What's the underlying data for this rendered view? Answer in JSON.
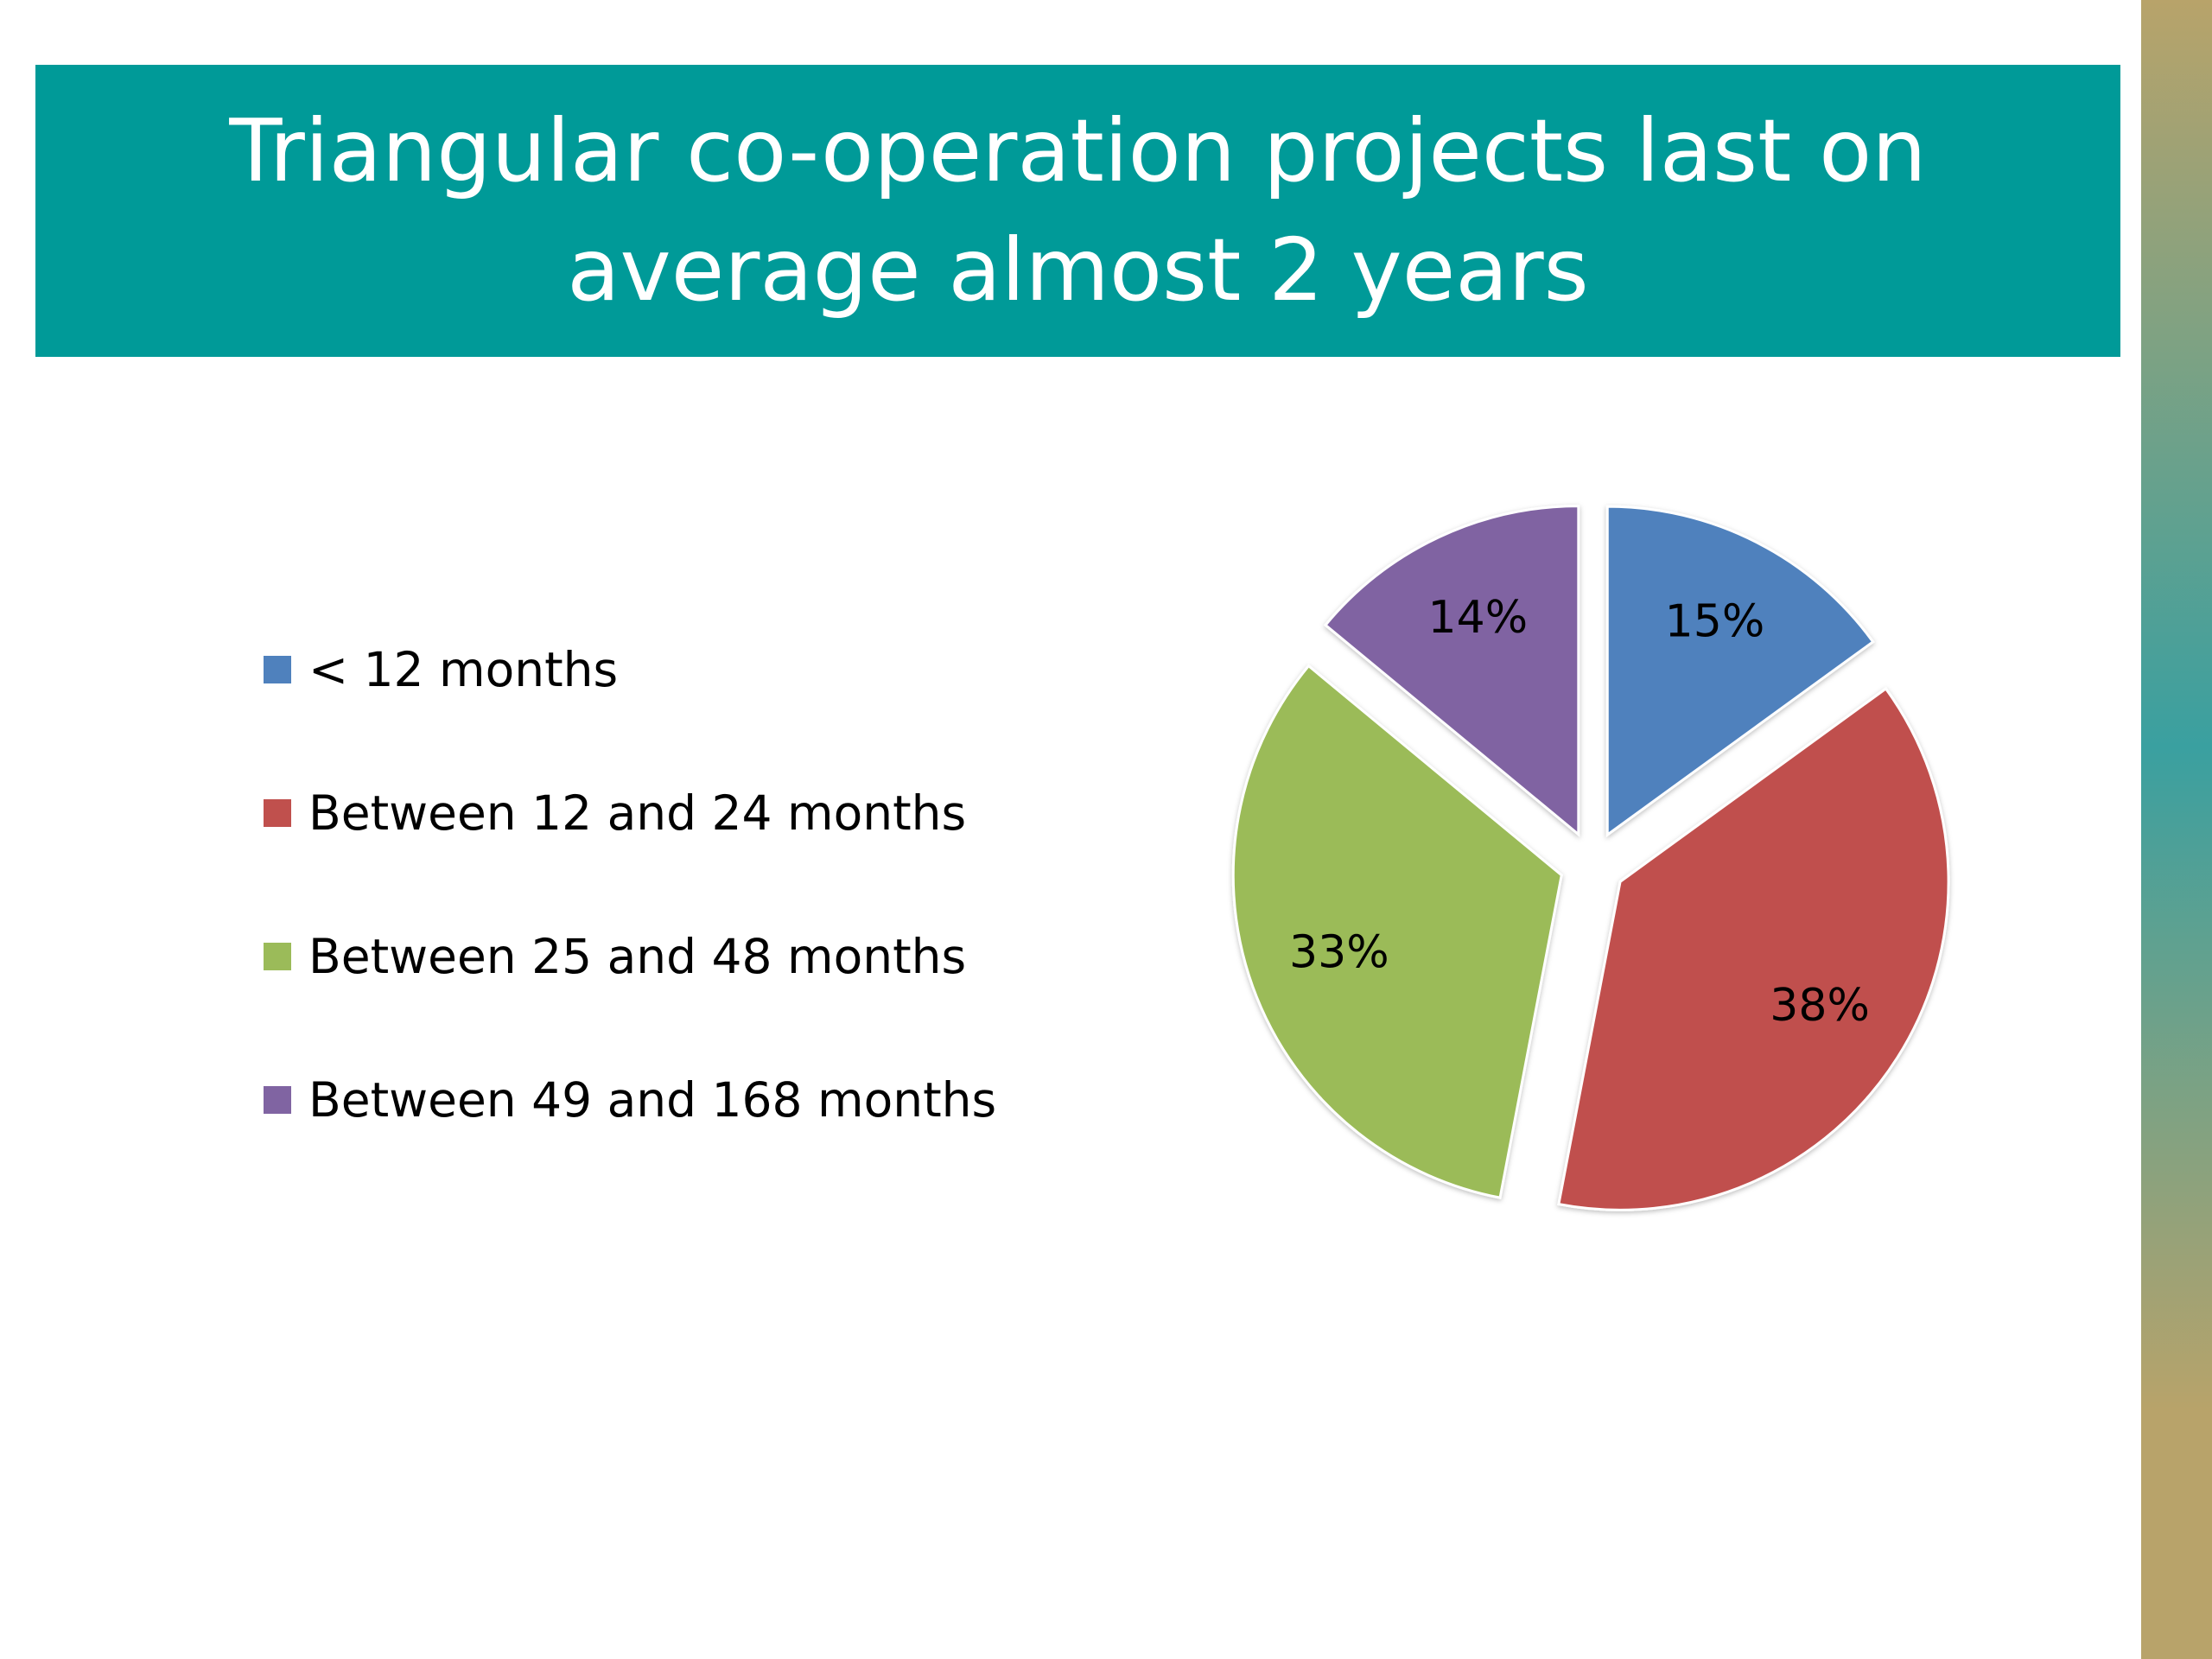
{
  "slide": {
    "title": "Triangular co-operation projects last on average almost 2 years",
    "banner_color": "#009a98",
    "stripe_colors": [
      "#b8a36a",
      "#3aa0a0"
    ]
  },
  "chart_data": {
    "type": "pie",
    "title": "",
    "legend_position": "left",
    "slices": [
      {
        "label": "< 12 months",
        "value": 15,
        "display": "15%",
        "color": "#4f81bd"
      },
      {
        "label": "Between 12 and 24 months",
        "value": 38,
        "display": "38%",
        "color": "#c0504d"
      },
      {
        "label": "Between 25 and 48 months",
        "value": 33,
        "display": "33%",
        "color": "#9bbb59"
      },
      {
        "label": "Between 49 and 168 months",
        "value": 14,
        "display": "14%",
        "color": "#8064a2"
      }
    ]
  }
}
